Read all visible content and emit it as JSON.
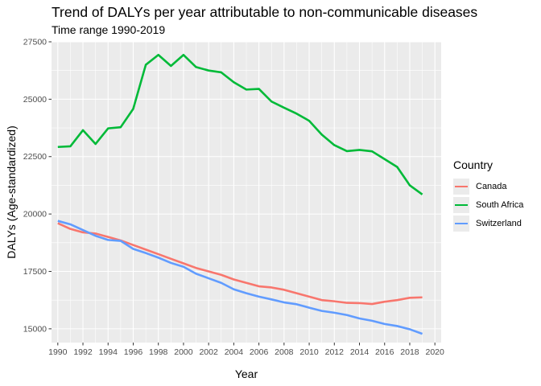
{
  "title": "Trend of DALYs per year attributable to non-communicable diseases",
  "subtitle": "Time range 1990-2019",
  "legend": {
    "title": "Country",
    "items": [
      {
        "label": "Canada",
        "color": "#F8766D"
      },
      {
        "label": "South Africa",
        "color": "#00BA38"
      },
      {
        "label": "Switzerland",
        "color": "#619CFF"
      }
    ]
  },
  "chart_data": {
    "type": "line",
    "title": "Trend of DALYs per year attributable to non-communicable diseases",
    "subtitle": "Time range 1990-2019",
    "xlabel": "Year",
    "ylabel": "DALYs (Age-standardized)",
    "xlim": [
      1989.5,
      2020.5
    ],
    "ylim": [
      14400,
      27500
    ],
    "x_ticks": [
      "1990",
      "1992",
      "1994",
      "1996",
      "1998",
      "2000",
      "2002",
      "2004",
      "2006",
      "2008",
      "2010",
      "2012",
      "2014",
      "2016",
      "2018",
      "2020"
    ],
    "y_ticks": [
      "15000",
      "17500",
      "20000",
      "22500",
      "25000",
      "27500"
    ],
    "grid": true,
    "legend_position": "right",
    "x": [
      1990,
      1991,
      1992,
      1993,
      1994,
      1995,
      1996,
      1997,
      1998,
      1999,
      2000,
      2001,
      2002,
      2003,
      2004,
      2005,
      2006,
      2007,
      2008,
      2009,
      2010,
      2011,
      2012,
      2013,
      2014,
      2015,
      2016,
      2017,
      2018,
      2019
    ],
    "series": [
      {
        "name": "Canada",
        "color": "#F8766D",
        "values": [
          19600,
          19350,
          19200,
          19150,
          19000,
          18850,
          18650,
          18450,
          18250,
          18050,
          17850,
          17650,
          17500,
          17350,
          17150,
          17000,
          16850,
          16800,
          16700,
          16550,
          16400,
          16250,
          16200,
          16130,
          16120,
          16080,
          16180,
          16250,
          16350,
          16370
        ]
      },
      {
        "name": "South Africa",
        "color": "#00BA38",
        "values": [
          22920,
          22950,
          23650,
          23050,
          23730,
          23780,
          24580,
          26500,
          26930,
          26450,
          26930,
          26400,
          26250,
          26170,
          25740,
          25420,
          25450,
          24900,
          24630,
          24370,
          24060,
          23460,
          23000,
          22740,
          22790,
          22730,
          22390,
          22050,
          21250,
          20850
        ]
      },
      {
        "name": "Switzerland",
        "color": "#619CFF",
        "values": [
          19700,
          19550,
          19300,
          19050,
          18870,
          18830,
          18480,
          18300,
          18100,
          17870,
          17700,
          17400,
          17200,
          17000,
          16720,
          16550,
          16400,
          16280,
          16150,
          16070,
          15920,
          15780,
          15700,
          15600,
          15450,
          15350,
          15210,
          15120,
          14980,
          14780
        ]
      }
    ]
  }
}
